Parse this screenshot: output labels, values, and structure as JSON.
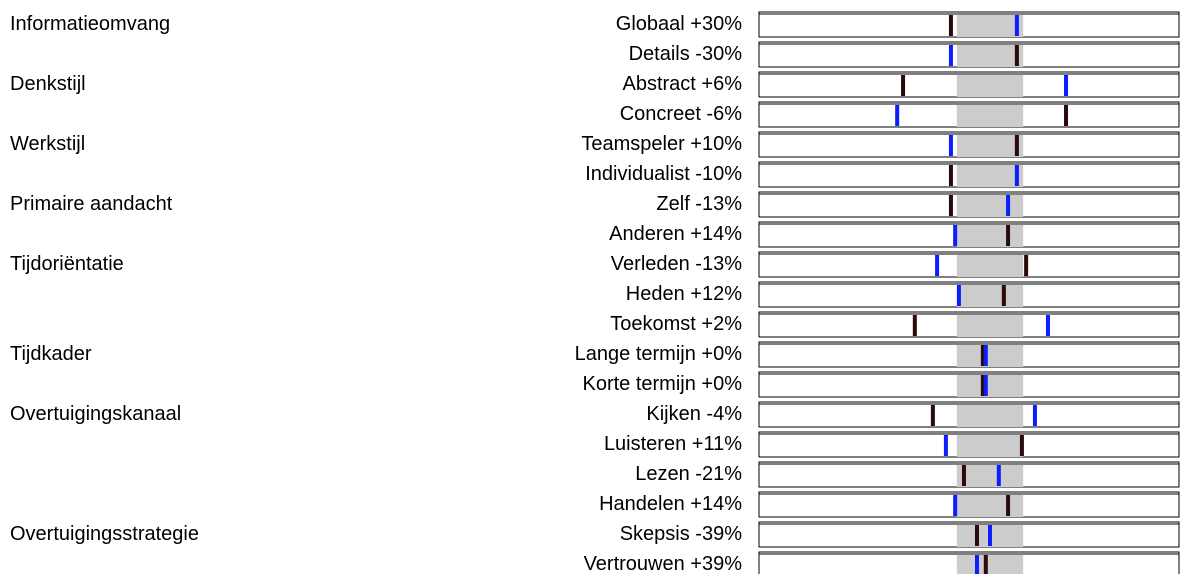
{
  "scale": [
    0,
    100
  ],
  "band": [
    47.1,
    62.9
  ],
  "groups": [
    {
      "label": "Informatieomvang",
      "rows": [
        {
          "label": "Globaal +30%",
          "dark": 45.7,
          "blue": 61.4
        },
        {
          "label": "Details -30%",
          "dark": 61.4,
          "blue": 45.7
        }
      ]
    },
    {
      "label": "Denkstijl",
      "rows": [
        {
          "label": "Abstract +6%",
          "dark": 34.3,
          "blue": 73.1
        },
        {
          "label": "Concreet -6%",
          "dark": 73.1,
          "blue": 32.9
        }
      ]
    },
    {
      "label": "Werkstijl",
      "rows": [
        {
          "label": "Teamspeler +10%",
          "dark": 61.4,
          "blue": 45.7
        },
        {
          "label": "Individualist -10%",
          "dark": 45.7,
          "blue": 61.4
        }
      ]
    },
    {
      "label": "Primaire aandacht",
      "rows": [
        {
          "label": "Zelf -13%",
          "dark": 45.7,
          "blue": 59.3
        },
        {
          "label": "Anderen +14%",
          "dark": 59.3,
          "blue": 46.7
        }
      ]
    },
    {
      "label": "Tijdoriëntatie",
      "rows": [
        {
          "label": "Verleden -13%",
          "dark": 63.6,
          "blue": 42.4
        },
        {
          "label": "Heden +12%",
          "dark": 58.3,
          "blue": 47.6
        },
        {
          "label": "Toekomst +2%",
          "dark": 37.1,
          "blue": 68.8
        }
      ]
    },
    {
      "label": "Tijdkader",
      "rows": [
        {
          "label": "Lange termijn +0%",
          "dark": 53.3,
          "blue": 54.0
        },
        {
          "label": "Korte termijn +0%",
          "dark": 53.3,
          "blue": 54.0
        }
      ]
    },
    {
      "label": "Overtuigingskanaal",
      "rows": [
        {
          "label": "Kijken -4%",
          "dark": 41.4,
          "blue": 65.7
        },
        {
          "label": "Luisteren +11%",
          "dark": 62.6,
          "blue": 44.5
        },
        {
          "label": "Lezen -21%",
          "dark": 48.8,
          "blue": 57.1
        },
        {
          "label": "Handelen +14%",
          "dark": 59.3,
          "blue": 46.7
        }
      ]
    },
    {
      "label": "Overtuigingsstrategie",
      "rows": [
        {
          "label": "Skepsis -39%",
          "dark": 51.9,
          "blue": 55.0
        },
        {
          "label": "Vertrouwen +39%",
          "dark": 54.0,
          "blue": 51.9
        }
      ]
    }
  ]
}
